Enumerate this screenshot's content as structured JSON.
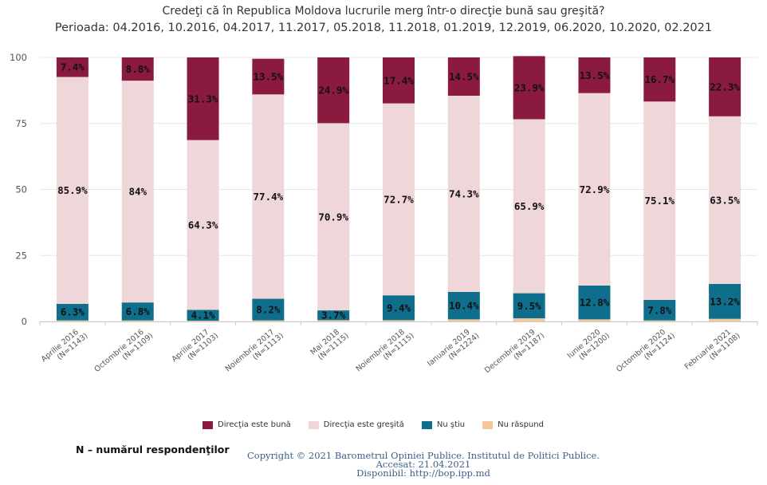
{
  "title": "Credeţi că în Republica Moldova lucrurile merg într-o direcţie bună sau greşită?",
  "subtitle": "Perioada: 04.2016, 10.2016, 04.2017, 11.2017, 05.2018, 11.2018, 01.2019, 12.2019, 06.2020, 10.2020, 02.2021",
  "note": "N – numărul respondenţilor",
  "copyright": {
    "line1": "Copyright © 2021 Barometrul Opiniei Publice. Institutul de Politici Publice.",
    "line2": "Accesat: 21.04.2021",
    "line3": "Disponibil: http://bop.ipp.md"
  },
  "chart_data": {
    "type": "bar",
    "stacked": true,
    "ylim": [
      0,
      100
    ],
    "yticks": [
      "0",
      "25",
      "50",
      "75",
      "100"
    ],
    "grid": true,
    "legend_position": "bottom",
    "categories": [
      [
        "Aprilie 2016",
        "(N=1143)"
      ],
      [
        "Octombrie 2016",
        "(N=1109)"
      ],
      [
        "Aprilie 2017",
        "(N=1103)"
      ],
      [
        "Noiembrie 2017",
        "(N=1113)"
      ],
      [
        "Mai 2018",
        "(N=1115)"
      ],
      [
        "Noiembrie 2018",
        "(N=1115)"
      ],
      [
        "Ianuarie 2019",
        "(N=1224)"
      ],
      [
        "Decembrie 2019",
        "(N=1187)"
      ],
      [
        "Iunie 2020",
        "(N=1200)"
      ],
      [
        "Octombrie 2020",
        "(N=1124)"
      ],
      [
        "Februarie 2021",
        "(N=1108)"
      ]
    ],
    "series": [
      {
        "name": "Nu răspund",
        "color": "#f2c79b",
        "values": [
          0.4,
          0.4,
          0.3,
          0.4,
          0.5,
          0.5,
          0.8,
          1.2,
          0.8,
          0.4,
          1.0
        ],
        "labels": [
          "",
          "",
          "",
          "",
          "",
          "",
          "",
          "",
          "",
          "",
          ""
        ]
      },
      {
        "name": "Nu ştiu",
        "color": "#0f6e8c",
        "values": [
          6.3,
          6.8,
          4.1,
          8.2,
          3.7,
          9.4,
          10.4,
          9.5,
          12.8,
          7.8,
          13.2
        ],
        "labels": [
          "6.3%",
          "6.8%",
          "4.1%",
          "8.2%",
          "3.7%",
          "9.4%",
          "10.4%",
          "9.5%",
          "12.8%",
          "7.8%",
          "13.2%"
        ]
      },
      {
        "name": "Direcţia este greşită",
        "color": "#efd6d9",
        "values": [
          85.9,
          84,
          64.3,
          77.4,
          70.9,
          72.7,
          74.3,
          65.9,
          72.9,
          75.1,
          63.5
        ],
        "labels": [
          "85.9%",
          "84%",
          "64.3%",
          "77.4%",
          "70.9%",
          "72.7%",
          "74.3%",
          "65.9%",
          "72.9%",
          "75.1%",
          "63.5%"
        ]
      },
      {
        "name": "Direcţia este bună",
        "color": "#8b1a3f",
        "values": [
          7.4,
          8.8,
          31.3,
          13.5,
          24.9,
          17.4,
          14.5,
          23.9,
          13.5,
          16.7,
          22.3
        ],
        "labels": [
          "7.4%",
          "8.8%",
          "31.3%",
          "13.5%",
          "24.9%",
          "17.4%",
          "14.5%",
          "23.9%",
          "13.5%",
          "16.7%",
          "22.3%"
        ]
      }
    ],
    "legend_order": [
      "Direcţia este bună",
      "Direcţia este greşită",
      "Nu ştiu",
      "Nu răspund"
    ]
  }
}
